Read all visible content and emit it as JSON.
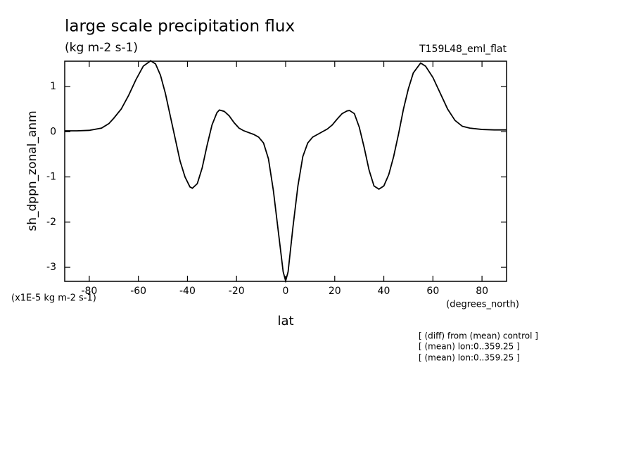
{
  "chart_data": {
    "type": "line",
    "title": "large scale precipitation flux",
    "subtitle": "(kg m-2 s-1)",
    "dataset": "T159L48_eml_flat",
    "y_label": "sh_dppn_zonal_anm",
    "y_units": "(x1E-5 kg m-2 s-1)",
    "x_label": "lat",
    "x_units": "(degrees_north)",
    "notes": [
      "[ (diff) from (mean) control ]",
      "[ (mean) lon:0..359.25 ]",
      "[ (mean) lon:0..359.25 ]"
    ],
    "xlim": [
      -90,
      90
    ],
    "xticks": [
      -80,
      -60,
      -40,
      -20,
      0,
      20,
      40,
      60,
      80
    ],
    "ylim": [
      -3.31,
      1.56
    ],
    "yticks": [
      -3,
      -2,
      -1,
      0,
      1
    ],
    "x": [
      -90,
      -85,
      -80,
      -75,
      -72,
      -70,
      -67,
      -64,
      -61,
      -58,
      -55,
      -53,
      -51,
      -49,
      -47,
      -45,
      -43,
      -41,
      -39,
      -38,
      -36,
      -34,
      -32,
      -30,
      -28,
      -27,
      -25,
      -23,
      -21,
      -19,
      -17,
      -15,
      -13,
      -11,
      -9,
      -7,
      -5,
      -3,
      -1,
      0,
      1,
      3,
      5,
      7,
      9,
      11,
      13,
      15,
      17,
      19,
      21,
      23,
      25,
      26,
      28,
      30,
      32,
      34,
      36,
      38,
      40,
      42,
      44,
      46,
      48,
      50,
      52,
      55,
      57,
      60,
      63,
      66,
      69,
      72,
      75,
      80,
      85,
      90
    ],
    "series": [
      {
        "color": "#000000",
        "values": [
          0.02,
          0.02,
          0.03,
          0.08,
          0.18,
          0.3,
          0.5,
          0.8,
          1.15,
          1.45,
          1.57,
          1.5,
          1.25,
          0.85,
          0.35,
          -0.15,
          -0.65,
          -1.0,
          -1.22,
          -1.25,
          -1.15,
          -0.8,
          -0.3,
          0.15,
          0.42,
          0.48,
          0.45,
          0.35,
          0.2,
          0.08,
          0.02,
          -0.02,
          -0.06,
          -0.12,
          -0.25,
          -0.6,
          -1.3,
          -2.2,
          -3.1,
          -3.3,
          -3.1,
          -2.1,
          -1.2,
          -0.55,
          -0.25,
          -0.12,
          -0.06,
          0.0,
          0.06,
          0.15,
          0.28,
          0.4,
          0.46,
          0.47,
          0.4,
          0.1,
          -0.35,
          -0.85,
          -1.2,
          -1.27,
          -1.2,
          -0.95,
          -0.55,
          -0.05,
          0.5,
          0.95,
          1.3,
          1.52,
          1.45,
          1.2,
          0.85,
          0.5,
          0.25,
          0.12,
          0.08,
          0.05,
          0.04,
          0.04
        ]
      }
    ]
  }
}
